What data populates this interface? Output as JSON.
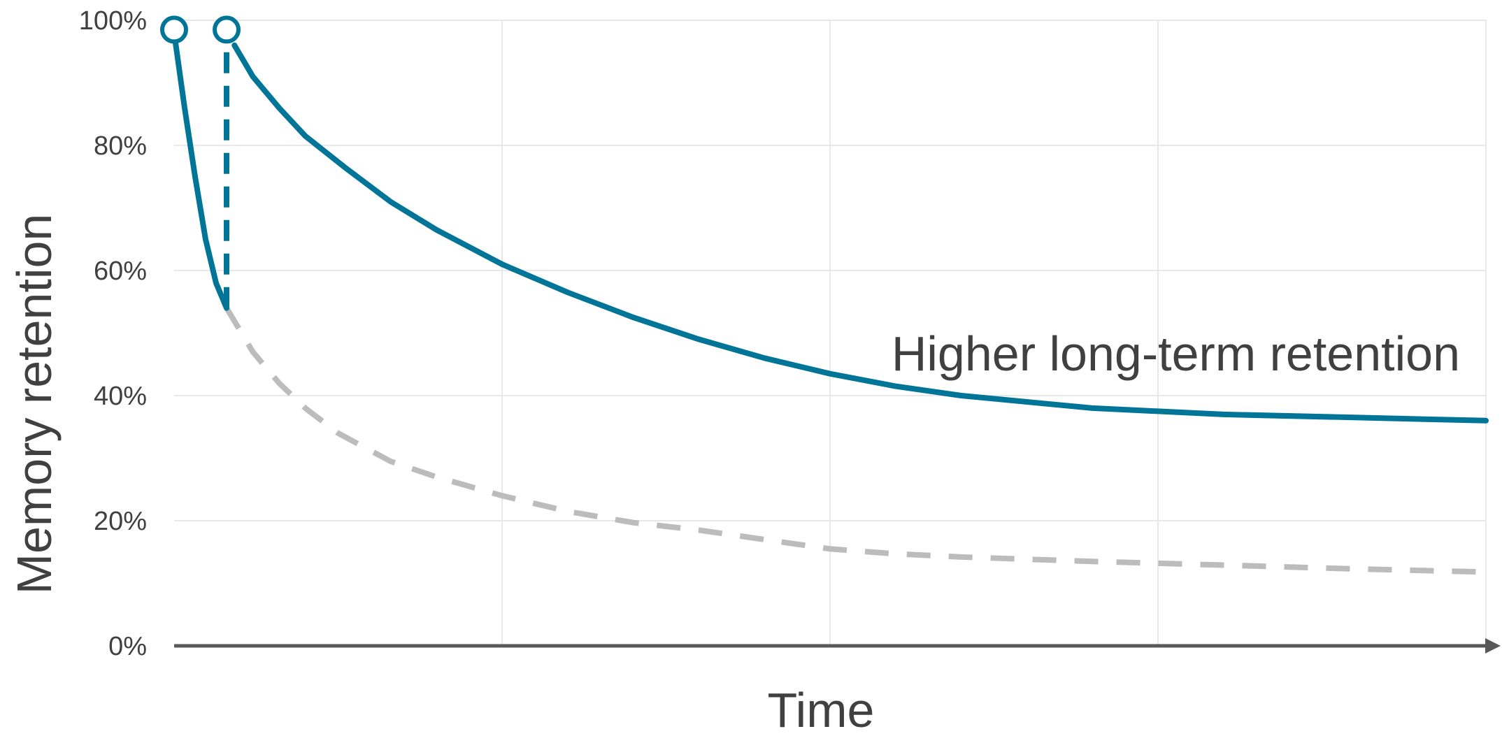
{
  "chart_data": {
    "type": "line",
    "xlabel": "Time",
    "ylabel": "Memory retention",
    "ylim": [
      0,
      100
    ],
    "y_ticks": [
      "0%",
      "20%",
      "40%",
      "60%",
      "80%",
      "100%"
    ],
    "y_tick_values": [
      0,
      20,
      40,
      60,
      80,
      100
    ],
    "xlim": [
      0,
      100
    ],
    "grid": true,
    "annotation": "Higher long-term retention",
    "colors": {
      "primary": "#007597",
      "baseline": "#bcbcbc",
      "grid": "#e8e8e8",
      "axis": "#595959",
      "text": "#404040"
    },
    "series": [
      {
        "style": "solid",
        "color": "#007597",
        "x": [
          0,
          0.8,
          1.6,
          2.4,
          3.2,
          4.0
        ],
        "y": [
          98,
          86,
          75,
          65,
          58,
          54
        ]
      },
      {
        "style": "dashed",
        "color": "#007597",
        "x": [
          4.0,
          4.0
        ],
        "y": [
          54,
          96
        ]
      },
      {
        "style": "solid",
        "color": "#007597",
        "x": [
          4.6,
          6,
          8,
          10,
          13,
          16.5,
          20,
          25,
          30,
          35,
          40,
          45,
          50,
          55,
          60,
          70,
          75,
          80,
          90,
          100
        ],
        "y": [
          96,
          91,
          86,
          81.5,
          76.5,
          71,
          66.5,
          61,
          56.5,
          52.5,
          49,
          46,
          43.5,
          41.5,
          40,
          38,
          37.5,
          37,
          36.5,
          36
        ]
      },
      {
        "style": "dashed",
        "color": "#bcbcbc",
        "x": [
          4.0,
          6,
          8,
          10,
          12.5,
          16.5,
          20,
          25,
          30,
          35,
          40,
          45,
          50,
          55,
          60,
          70,
          75,
          80,
          90,
          100
        ],
        "y": [
          54,
          47,
          42,
          38,
          34,
          29.5,
          27,
          24,
          21.5,
          19.7,
          18.5,
          17,
          15.5,
          14.7,
          14.2,
          13.5,
          13.2,
          12.9,
          12.3,
          11.8
        ]
      }
    ],
    "markers": [
      {
        "x": 0,
        "y": 98.5
      },
      {
        "x": 4.0,
        "y": 98.5
      }
    ]
  }
}
